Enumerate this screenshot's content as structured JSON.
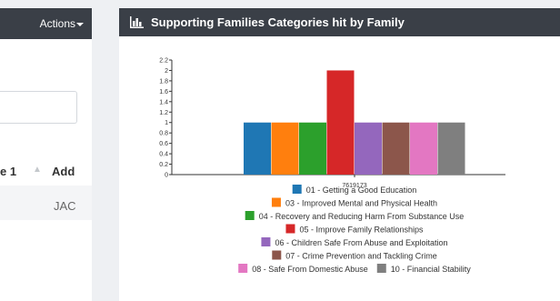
{
  "left_panel": {
    "actions_label": "Actions",
    "table": {
      "headers": [
        "e 1",
        "Add"
      ],
      "rows": [
        [
          "",
          "JAC"
        ]
      ]
    }
  },
  "chart_panel": {
    "title": "Supporting Families Categories hit by Family"
  },
  "chart_data": {
    "type": "bar",
    "categories": [
      "7619173"
    ],
    "ylim": [
      0,
      2.2
    ],
    "yticks": [
      0,
      0.2,
      0.4,
      0.6,
      0.8,
      1,
      1.2,
      1.4,
      1.6,
      1.8,
      2,
      2.2
    ],
    "series": [
      {
        "name": "01 - Getting a Good Education",
        "color": "#1f77b4",
        "values": [
          1
        ]
      },
      {
        "name": "03 - Improved Mental and Physical Health",
        "color": "#ff7f0e",
        "values": [
          1
        ]
      },
      {
        "name": "04 - Recovery and Reducing Harm From Substance Use",
        "color": "#2ca02c",
        "values": [
          1
        ]
      },
      {
        "name": "05 - Improve Family Relationships",
        "color": "#d62728",
        "values": [
          2
        ]
      },
      {
        "name": "06 - Children Safe From Abuse and Exploitation",
        "color": "#9467bd",
        "values": [
          1
        ]
      },
      {
        "name": "07 - Crime Prevention and Tackling Crime",
        "color": "#8c564b",
        "values": [
          1
        ]
      },
      {
        "name": "08 - Safe From Domestic Abuse",
        "color": "#e377c2",
        "values": [
          1
        ]
      },
      {
        "name": "10 - Financial Stability",
        "color": "#7f7f7f",
        "values": [
          1
        ]
      }
    ],
    "legend_position": "bottom"
  }
}
